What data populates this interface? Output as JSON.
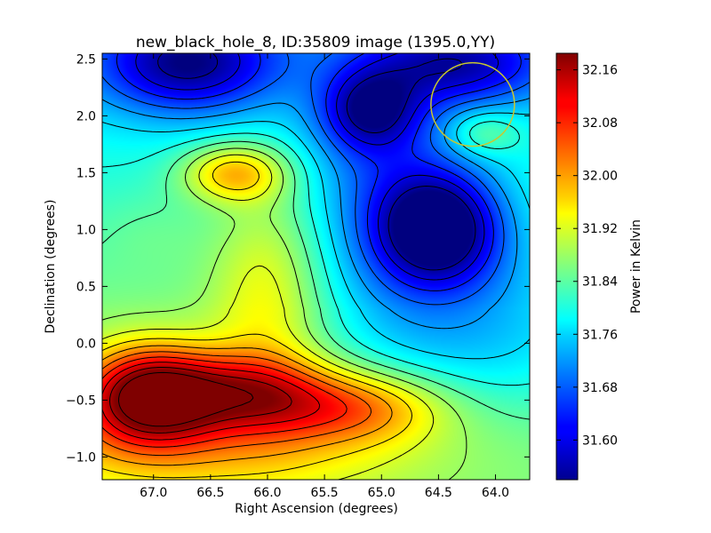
{
  "chart_data": {
    "type": "heatmap",
    "title": "new_black_hole_8, ID:35809 image (1395.0,YY)",
    "xlabel": "Right Ascension (degrees)",
    "ylabel": "Declination (degrees)",
    "colorbar_label": "Power in Kelvin",
    "colormap": "jet",
    "contours": true,
    "xlim": [
      67.45,
      63.7
    ],
    "ylim": [
      -1.2,
      2.55
    ],
    "x_ticks": [
      "67.0",
      "66.5",
      "66.0",
      "65.5",
      "65.0",
      "64.5",
      "64.0"
    ],
    "y_ticks": [
      "-1.0",
      "-0.5",
      "0.0",
      "0.5",
      "1.0",
      "1.5",
      "2.0",
      "2.5"
    ],
    "colorbar_range": [
      31.54,
      32.185
    ],
    "colorbar_ticks": [
      "31.60",
      "31.68",
      "31.76",
      "31.84",
      "31.92",
      "32.00",
      "32.08",
      "32.16"
    ],
    "marker_circle": {
      "ra": 64.2,
      "dec": 2.1,
      "color": "#c8c830"
    },
    "features": [
      {
        "ra": 67.05,
        "dec": -0.45,
        "value": 32.18
      },
      {
        "ra": 66.2,
        "dec": -0.42,
        "value": 32.1
      },
      {
        "ra": 65.1,
        "dec": -0.55,
        "value": 32.06
      },
      {
        "ra": 66.3,
        "dec": 1.5,
        "value": 32.02
      },
      {
        "ra": 64.5,
        "dec": 1.02,
        "value": 31.55
      },
      {
        "ra": 66.7,
        "dec": 2.45,
        "value": 31.6
      },
      {
        "ra": 65.1,
        "dec": 2.05,
        "value": 31.65
      },
      {
        "ra": 64.1,
        "dec": 1.85,
        "value": 31.77
      },
      {
        "ra": 67.0,
        "dec": 1.0,
        "value": 31.76
      }
    ]
  }
}
